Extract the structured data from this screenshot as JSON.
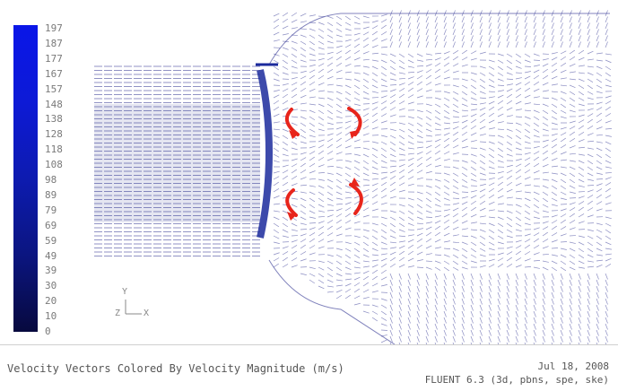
{
  "colorbar": {
    "labels": [
      "197",
      "187",
      "177",
      "167",
      "157",
      "148",
      "138",
      "128",
      "118",
      "108",
      "98",
      "89",
      "79",
      "69",
      "59",
      "49",
      "39",
      "30",
      "20",
      "10",
      "0"
    ],
    "colors": {
      "top": "#0a16e8",
      "bottom": "#07093e"
    }
  },
  "axes": {
    "y_label": "Y",
    "z_label": "Z",
    "x_label": "X"
  },
  "vectors": {
    "color": "#2b2f8f",
    "recirculation_arrow_color": "#e8251b"
  },
  "footer": {
    "caption": "Velocity Vectors Colored By Velocity Magnitude (m/s)",
    "date": "Jul 18, 2008",
    "version": "FLUENT 6.3 (3d, pbns, spe, ske)"
  }
}
